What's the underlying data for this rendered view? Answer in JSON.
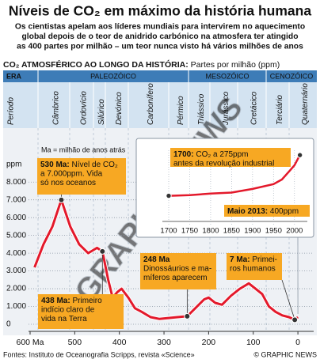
{
  "chart_data": {
    "type": "line",
    "title": "Níveis de CO₂ em máximo da história humana",
    "subtitle": [
      "Os cientistas apelam aos líderes mundiais para intervirem no aquecimento",
      "global depois de o teor de anidrido carbónico na atmosfera ter atingido",
      "as 400 partes por milhão – um teor nunca visto há vários milhões de anos"
    ],
    "section_title": "CO₂ ATMOSFÉRICO AO LONGO DA HISTÓRIA:",
    "section_unit": "Partes por milhão (ppm)",
    "era_header": {
      "label": "ERA",
      "eras": [
        "PALEOZÓICO",
        "MESOZÓICO",
        "CENOZÓICO"
      ]
    },
    "period_header": {
      "label": "Período",
      "periods": [
        "Câmbrico",
        "Ordovício",
        "Silúrico",
        "Devónico",
        "Carbonífero",
        "Pérmico",
        "Triássico",
        "Jurássico",
        "Cretácico",
        "Terciário",
        "Quaternário"
      ]
    },
    "ylabel": "ppm",
    "note": "Ma = milhão de anos atrás",
    "x": [
      590,
      570,
      550,
      530,
      510,
      490,
      470,
      450,
      438,
      425,
      415,
      405,
      395,
      380,
      365,
      350,
      330,
      310,
      290,
      270,
      248,
      230,
      210,
      200,
      185,
      170,
      150,
      130,
      110,
      95,
      80,
      65,
      50,
      35,
      20,
      7,
      0
    ],
    "series": [
      {
        "name": "CO₂",
        "color": "#e3192b",
        "values": [
          3200,
          4500,
          5500,
          7000,
          5500,
          4500,
          4000,
          4300,
          4100,
          2500,
          1500,
          1800,
          2000,
          1500,
          900,
          700,
          400,
          300,
          350,
          400,
          450,
          900,
          1400,
          1500,
          1200,
          1100,
          1600,
          2000,
          2300,
          2000,
          1700,
          1000,
          700,
          500,
          400,
          250,
          400
        ]
      }
    ],
    "xlim": [
      600,
      -30
    ],
    "xticks": [
      {
        "value": 600,
        "label": "600 Ma"
      },
      500,
      400,
      300,
      200,
      100,
      0
    ],
    "ylim": [
      0,
      8500
    ],
    "yticks": [
      0,
      {
        "value": 1000,
        "label": "1.000"
      },
      {
        "value": 2000,
        "label": "2.000"
      },
      {
        "value": 3000,
        "label": "3.000"
      },
      {
        "value": 4000,
        "label": "4.000"
      },
      {
        "value": 5000,
        "label": "5.000"
      },
      {
        "value": 6000,
        "label": "6.000"
      },
      {
        "value": 7000,
        "label": "7.000"
      },
      {
        "value": 8000,
        "label": "8.000"
      }
    ],
    "grid": true,
    "annotations": [
      {
        "bold": "530 Ma:",
        "lines": [
          "Nível de CO₂",
          "a 7.000ppm. Vida",
          "só nos oceanos"
        ],
        "x": 530
      },
      {
        "bold": "438 Ma:",
        "lines": [
          "Primeiro",
          "indício claro de",
          "vida na Terra"
        ],
        "x": 438
      },
      {
        "bold": "248 Ma",
        "lines": [
          "",
          "Dinossáurios e ma-",
          "míferos aparecem"
        ],
        "x": 248
      },
      {
        "bold": "7 Ma:",
        "lines": [
          "Primei-",
          "ros humanos"
        ],
        "x": 7
      }
    ],
    "inset": {
      "x": [
        1700,
        1750,
        1800,
        1850,
        1900,
        1950,
        1970,
        1990,
        2000,
        2013
      ],
      "values": [
        275,
        277,
        282,
        285,
        296,
        311,
        325,
        354,
        369,
        400
      ],
      "xlim": [
        1690,
        2025
      ],
      "ylim": [
        240,
        410
      ],
      "xticks": [
        1700,
        1750,
        1800,
        1850,
        1900,
        1950,
        2000
      ],
      "annotations": [
        {
          "bold": "1700:",
          "lines": [
            "CO₂ a 275ppm",
            "antes da revolução industrial"
          ]
        },
        {
          "bold": "Maio 2013:",
          "lines": [
            "400ppm"
          ]
        }
      ]
    },
    "watermark": "© GRAPHIC NEWS",
    "source": "Fontes: Instituto de Oceanografia Scripps, revista «Science»",
    "credit": "© GRAPHIC NEWS"
  }
}
